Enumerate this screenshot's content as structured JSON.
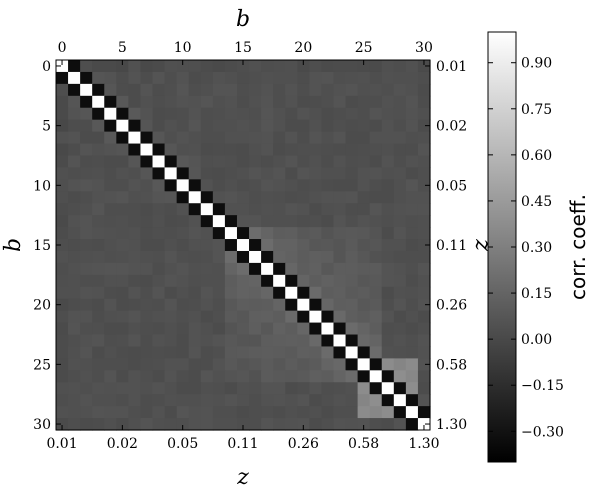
{
  "chart_data": {
    "type": "heatmap",
    "n": 31,
    "x_bottom_label": "z",
    "x_top_label": "b",
    "y_left_label": "b",
    "y_right_label": "z",
    "top_ticks": [
      "0",
      "5",
      "10",
      "15",
      "20",
      "25",
      "30"
    ],
    "left_ticks": [
      "0",
      "5",
      "10",
      "15",
      "20",
      "25",
      "30"
    ],
    "bottom_ticks": [
      "0.01",
      "0.02",
      "0.05",
      "0.11",
      "0.26",
      "0.58",
      "1.30"
    ],
    "right_ticks": [
      "0.01",
      "0.02",
      "0.05",
      "0.11",
      "0.26",
      "0.58",
      "1.30"
    ],
    "colorbar": {
      "label": "corr. coeff.",
      "range": [
        -0.4,
        1.0
      ],
      "ticks": [
        "0.90",
        "0.75",
        "0.60",
        "0.45",
        "0.30",
        "0.15",
        "0.00",
        "−0.15",
        "−0.30"
      ],
      "tick_values": [
        0.9,
        0.75,
        0.6,
        0.45,
        0.3,
        0.15,
        0.0,
        -0.15,
        -0.3
      ]
    },
    "diagonal_value": 1.0,
    "adjacent_value": -0.33
  }
}
